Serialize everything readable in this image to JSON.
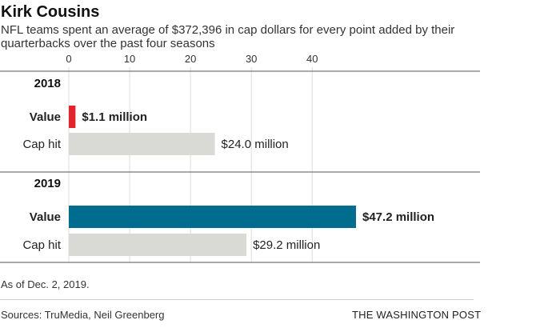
{
  "title": "Kirk Cousins",
  "subtitle": "NFL teams spent an average of $372,396 in cap dollars for every point added by their quarterbacks over the past four seasons",
  "note": "As of Dec. 2, 2019.",
  "sources": "Sources: TruMedia, Neil Greenberg",
  "brand": "THE WASHINGTON POST",
  "colors": {
    "value_2018": "#e3242b",
    "value_2019": "#006c8e",
    "cap_hit": "#d9d9d6",
    "grid": "#dcdcdc",
    "text": "#222222"
  },
  "chart_data": {
    "type": "bar",
    "orientation": "horizontal",
    "xlim": [
      0,
      47.2
    ],
    "xticks": [
      0,
      10,
      20,
      30,
      40
    ],
    "grid": true,
    "groups": [
      {
        "label": "2018",
        "bars": [
          {
            "label": "Value",
            "value": 1.1,
            "value_label": "$1.1 million",
            "bold": true,
            "color_key": "value_2018"
          },
          {
            "label": "Cap hit",
            "value": 24.0,
            "value_label": "$24.0 million",
            "bold": false,
            "color_key": "cap_hit"
          }
        ]
      },
      {
        "label": "2019",
        "bars": [
          {
            "label": "Value",
            "value": 47.2,
            "value_label": "$47.2 million",
            "bold": true,
            "color_key": "value_2019"
          },
          {
            "label": "Cap hit",
            "value": 29.2,
            "value_label": "$29.2 million",
            "bold": false,
            "color_key": "cap_hit"
          }
        ]
      }
    ]
  }
}
